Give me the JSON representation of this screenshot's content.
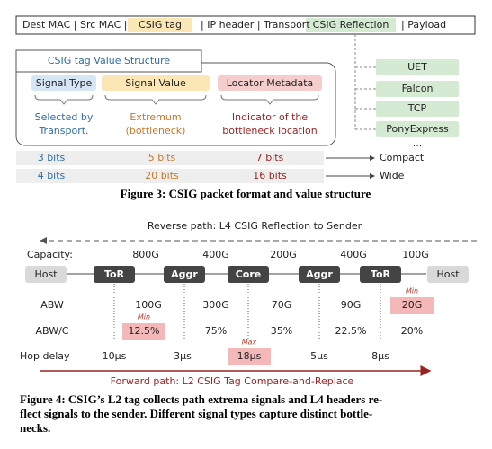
{
  "figure3": {
    "packet": [
      "Dest MAC | Src MAC |",
      "CSIG tag",
      "| IP header | Transport",
      "CSIG Reflection",
      "| Payload"
    ],
    "structure_title": "CSIG tag Value Structure",
    "columns": [
      {
        "header": "Signal Type",
        "desc": [
          "Selected by",
          "Transport."
        ]
      },
      {
        "header": "Signal Value",
        "desc": [
          "Extremum",
          "(bottleneck)"
        ]
      },
      {
        "header": "Locator Metadata",
        "desc": [
          "Indicator of the",
          "bottleneck location"
        ]
      }
    ],
    "transports": [
      "UET",
      "Falcon",
      "TCP",
      "PonyExpress",
      "..."
    ],
    "formats": [
      {
        "bits": [
          "3 bits",
          "5 bits",
          "7 bits"
        ],
        "label": "Compact"
      },
      {
        "bits": [
          "4 bits",
          "20 bits",
          "16 bits"
        ],
        "label": "Wide"
      }
    ],
    "caption": "Figure 3: CSIG packet format and value structure"
  },
  "figure4": {
    "reverse_label": "Reverse path: L4 CSIG Reflection to Sender",
    "capacity_label": "Capacity:",
    "nodes": [
      "Host",
      "ToR",
      "Aggr",
      "Core",
      "Aggr",
      "ToR",
      "Host"
    ],
    "capacities": [
      "800G",
      "400G",
      "200G",
      "400G",
      "100G"
    ],
    "rows": [
      {
        "label": "ABW",
        "values": [
          "100G",
          "300G",
          "70G",
          "90G",
          "20G"
        ]
      },
      {
        "label": "ABW/C",
        "values": [
          "12.5%",
          "75%",
          "35%",
          "22.5%",
          "20%"
        ]
      },
      {
        "label": "Hop delay",
        "values": [
          "10μs",
          "3μs",
          "18μs",
          "5μs",
          "8μs"
        ]
      }
    ],
    "highlights": [
      "Min",
      "Min",
      "Max"
    ],
    "forward_label": "Forward path: L2 CSIG Tag Compare-and-Replace",
    "caption": [
      "Figure 4: CSIG’s L2 tag collects path extrema signals and L4 headers re-",
      "flect signals to the sender. Different signal types capture distinct bottle-",
      "necks."
    ]
  }
}
